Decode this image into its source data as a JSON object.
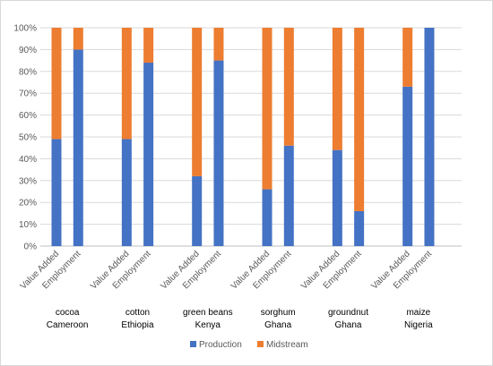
{
  "chart_data": {
    "type": "bar",
    "stacked": true,
    "percent": true,
    "categories": [
      "Value Added",
      "Employment",
      "Value Added",
      "Employment",
      "Value Added",
      "Employment",
      "Value Added",
      "Employment",
      "Value Added",
      "Employment",
      "Value Added",
      "Employment"
    ],
    "groups": [
      {
        "line1": "cocoa",
        "line2": "Cameroon"
      },
      {
        "line1": "cotton",
        "line2": "Ethiopia"
      },
      {
        "line1": "green beans",
        "line2": "Kenya"
      },
      {
        "line1": "sorghum",
        "line2": "Ghana"
      },
      {
        "line1": "groundnut",
        "line2": "Ghana"
      },
      {
        "line1": "maize",
        "line2": "Nigeria"
      }
    ],
    "series": [
      {
        "name": "Production",
        "color": "#4472C4",
        "values": [
          49,
          90,
          49,
          84,
          32,
          85,
          26,
          46,
          44,
          16,
          73,
          100
        ]
      },
      {
        "name": "Midstream",
        "color": "#ED7D31",
        "values": [
          51,
          10,
          51,
          16,
          68,
          15,
          74,
          54,
          56,
          84,
          27,
          0
        ]
      }
    ],
    "ylim": [
      0,
      100
    ],
    "yticks": [
      "0%",
      "10%",
      "20%",
      "30%",
      "40%",
      "50%",
      "60%",
      "70%",
      "80%",
      "90%",
      "100%"
    ],
    "grid": true,
    "legend_position": "bottom"
  }
}
